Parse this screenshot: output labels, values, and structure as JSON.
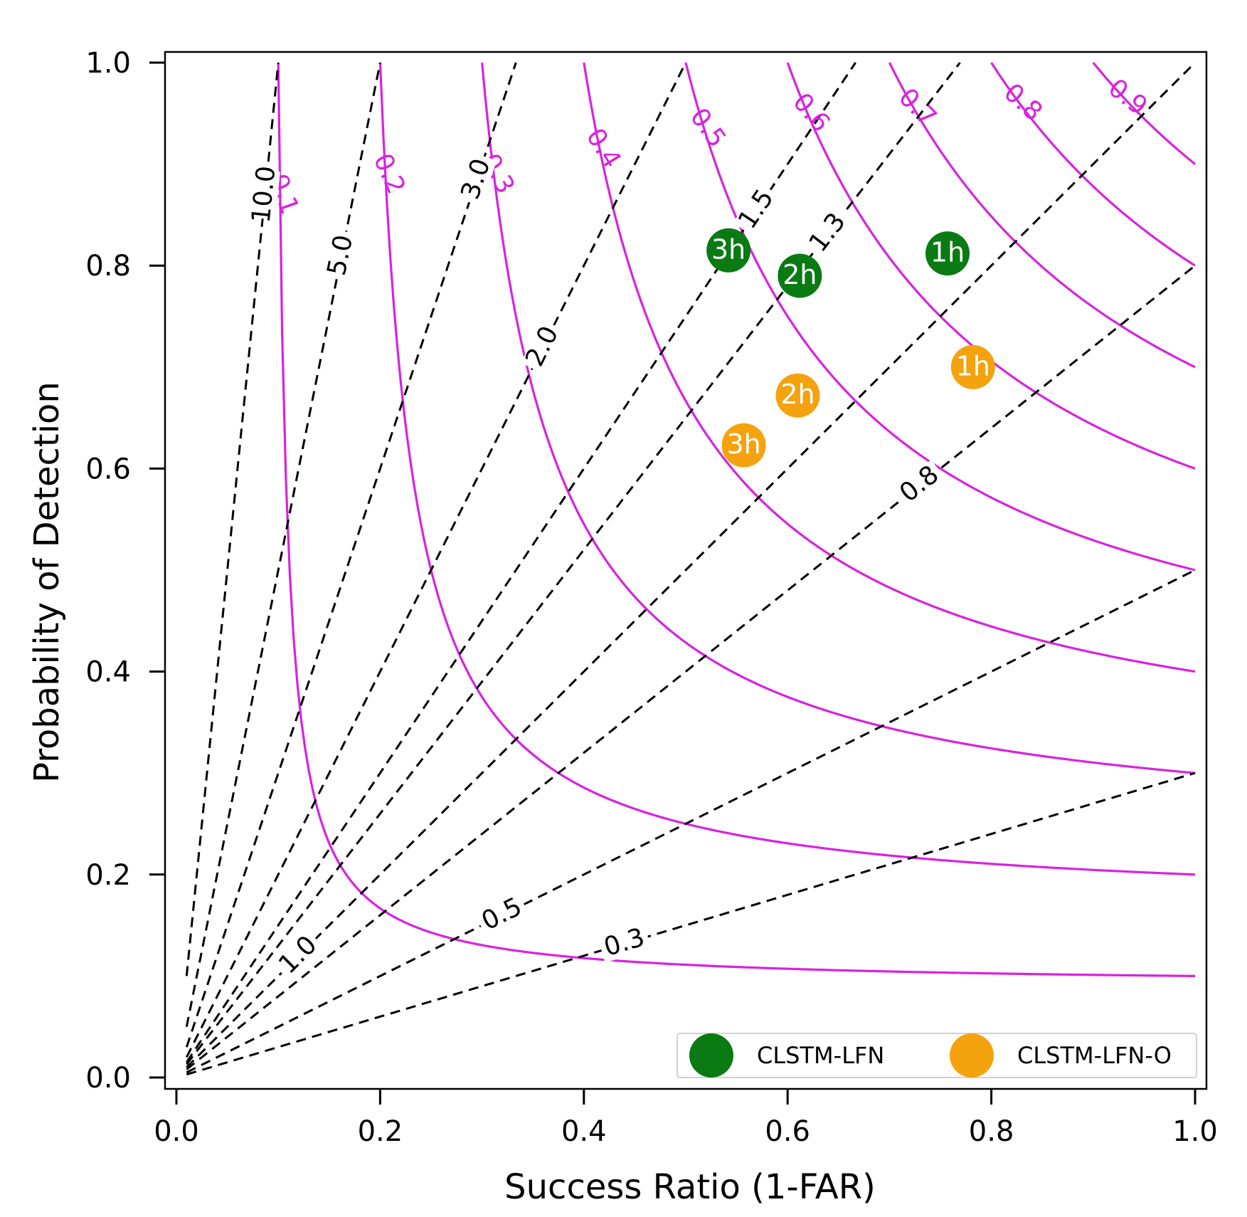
{
  "chart_data": {
    "type": "scatter",
    "subtype": "performance-diagram",
    "xlabel": "Success Ratio (1-FAR)",
    "ylabel": "Probability of Detection",
    "xlim": [
      0.0,
      1.0
    ],
    "ylim": [
      0.0,
      1.0
    ],
    "x_ticks": [
      "0.0",
      "0.2",
      "0.4",
      "0.6",
      "0.8",
      "1.0"
    ],
    "y_ticks": [
      "0.0",
      "0.2",
      "0.4",
      "0.6",
      "0.8",
      "1.0"
    ],
    "csi_contours": {
      "color": "#d822e0",
      "values": [
        0.1,
        0.2,
        0.3,
        0.4,
        0.5,
        0.6,
        0.7,
        0.8,
        0.9
      ],
      "labels": [
        "0.1",
        "0.2",
        "0.3",
        "0.4",
        "0.5",
        "0.6",
        "0.7",
        "0.8",
        "0.9"
      ]
    },
    "bias_lines": {
      "color": "#000000",
      "style": "dashed",
      "values": [
        0.3,
        0.5,
        0.8,
        1.0,
        1.3,
        1.5,
        2.0,
        3.0,
        5.0,
        10.0
      ],
      "labels": [
        "0.3",
        "0.5",
        "0.8",
        "1.0",
        "1.3",
        "1.5",
        "2.0",
        "3.0",
        "5.0",
        "10.0"
      ]
    },
    "series": [
      {
        "name": "CLSTM-LFN",
        "color": "#0a7a12",
        "points": [
          {
            "label": "1h",
            "x": 0.757,
            "y": 0.812
          },
          {
            "label": "2h",
            "x": 0.612,
            "y": 0.79
          },
          {
            "label": "3h",
            "x": 0.542,
            "y": 0.815
          }
        ]
      },
      {
        "name": "CLSTM-LFN-O",
        "color": "#f5a20f",
        "points": [
          {
            "label": "1h",
            "x": 0.782,
            "y": 0.7
          },
          {
            "label": "2h",
            "x": 0.61,
            "y": 0.672
          },
          {
            "label": "3h",
            "x": 0.557,
            "y": 0.623
          }
        ]
      }
    ],
    "legend": {
      "position": "bottom-right",
      "entries": [
        "CLSTM-LFN",
        "CLSTM-LFN-O"
      ]
    }
  }
}
